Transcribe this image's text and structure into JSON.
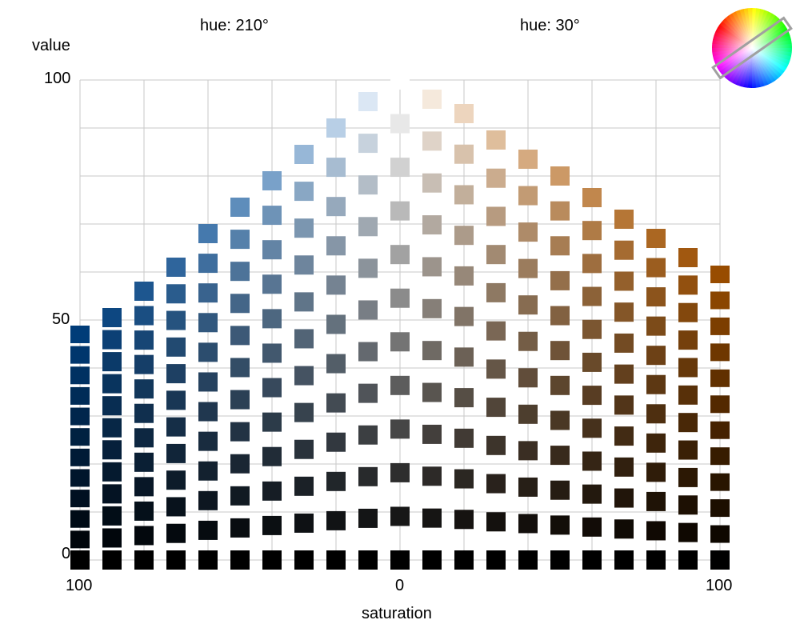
{
  "labels": {
    "hue_left": "hue: 210°",
    "hue_right": "hue: 30°",
    "value_axis": "value",
    "saturation_axis": "saturation"
  },
  "value_ticks": [
    "100",
    "50",
    "0"
  ],
  "saturation_ticks": [
    "100",
    "0",
    "100"
  ],
  "hues": {
    "left": 210,
    "right": 30
  },
  "grid": {
    "saturation_positions": [
      100,
      90,
      80,
      70,
      60,
      50,
      40,
      30,
      20,
      10,
      0,
      10,
      20,
      30,
      40,
      50,
      60,
      70,
      80,
      90,
      100
    ],
    "value_steps": [
      0,
      7.5,
      15,
      22.5,
      30,
      37.5,
      45,
      52.5,
      60,
      67.5,
      75,
      82.5,
      90,
      97.5
    ],
    "sides": [
      "left",
      "left",
      "left",
      "left",
      "left",
      "left",
      "left",
      "left",
      "left",
      "left",
      "neutral",
      "right",
      "right",
      "right",
      "right",
      "right",
      "right",
      "right",
      "right",
      "right",
      "right"
    ]
  },
  "colors": {
    "gridline": "#c8c8c8",
    "wheel_marker": "#a0a0a0"
  },
  "icons": {
    "hue_wheel": "color-wheel-icon"
  }
}
